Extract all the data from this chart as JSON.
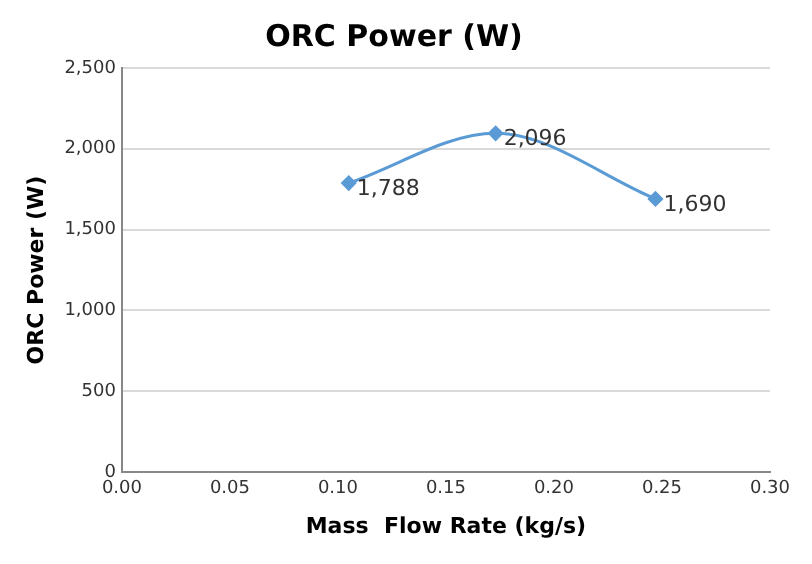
{
  "chart_data": {
    "type": "line",
    "title": "ORC Power (W)",
    "xlabel": "Mass  Flow Rate (kg/s)",
    "ylabel": "ORC Power (W)",
    "x": [
      0.105,
      0.173,
      0.247
    ],
    "series": [
      {
        "color": "#5b9bd5",
        "values": [
          1788,
          2096,
          1690
        ],
        "value_labels": [
          "1,788",
          "2,096",
          "1,690"
        ]
      }
    ],
    "xlim": [
      0,
      0.3
    ],
    "xticks": [
      {
        "value": 0,
        "label": "0.00"
      },
      {
        "value": 0.05,
        "label": "0.05"
      },
      {
        "value": 0.1,
        "label": "0.10"
      },
      {
        "value": 0.15,
        "label": "0.15"
      },
      {
        "value": 0.2,
        "label": "0.20"
      },
      {
        "value": 0.25,
        "label": "0.25"
      },
      {
        "value": 0.3,
        "label": "0.30"
      }
    ],
    "ylim": [
      0,
      2500
    ],
    "yticks": [
      0,
      500,
      {
        "value": 1000,
        "label": "1,000"
      },
      {
        "value": 1500,
        "label": "1,500"
      },
      {
        "value": 2000,
        "label": "2,000"
      },
      {
        "value": 2500,
        "label": "2,500"
      }
    ],
    "grid": "y",
    "legend": false,
    "marker": "diamond",
    "line_style": "solid"
  }
}
